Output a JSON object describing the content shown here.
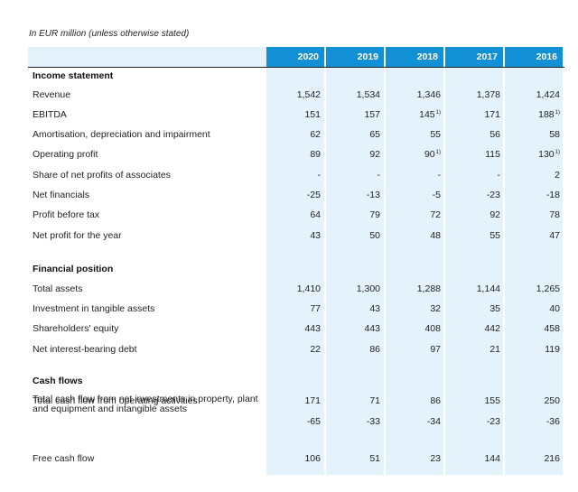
{
  "caption": "In EUR million (unless otherwise stated)",
  "years": [
    "2020",
    "2019",
    "2018",
    "2017",
    "2016"
  ],
  "sections": [
    {
      "title": "Income statement",
      "rows": [
        {
          "label": "Revenue",
          "values": [
            "1,542",
            "1,534",
            "1,346",
            "1,378",
            "1,424"
          ],
          "notes": [
            "",
            "",
            "",
            "",
            ""
          ]
        },
        {
          "label": "EBITDA",
          "values": [
            "151",
            "157",
            "145",
            "171",
            "188"
          ],
          "notes": [
            "",
            "",
            "1)",
            "",
            "1)"
          ]
        },
        {
          "label": "Amortisation, depreciation and impairment",
          "values": [
            "62",
            "65",
            "55",
            "56",
            "58"
          ],
          "notes": [
            "",
            "",
            "",
            "",
            ""
          ]
        },
        {
          "label": "Operating profit",
          "values": [
            "89",
            "92",
            "90",
            "115",
            "130"
          ],
          "notes": [
            "",
            "",
            "1)",
            "",
            "1)"
          ]
        },
        {
          "label": "Share of net profits of associates",
          "values": [
            "-",
            "-",
            "-",
            "-",
            "2"
          ],
          "notes": [
            "",
            "",
            "",
            "",
            ""
          ]
        },
        {
          "label": "Net financials",
          "values": [
            "-25",
            "-13",
            "-5",
            "-23",
            "-18"
          ],
          "notes": [
            "",
            "",
            "",
            "",
            ""
          ]
        },
        {
          "label": "Profit before tax",
          "values": [
            "64",
            "79",
            "72",
            "92",
            "78"
          ],
          "notes": [
            "",
            "",
            "",
            "",
            ""
          ]
        },
        {
          "label": "Net profit for the year",
          "values": [
            "43",
            "50",
            "48",
            "55",
            "47"
          ],
          "notes": [
            "",
            "",
            "",
            "",
            ""
          ]
        }
      ]
    },
    {
      "title": "Financial position",
      "rows": [
        {
          "label": "Total assets",
          "values": [
            "1,410",
            "1,300",
            "1,288",
            "1,144",
            "1,265"
          ],
          "notes": [
            "",
            "",
            "",
            "",
            ""
          ]
        },
        {
          "label": "Investment in tangible assets",
          "values": [
            "77",
            "43",
            "32",
            "35",
            "40"
          ],
          "notes": [
            "",
            "",
            "",
            "",
            ""
          ]
        },
        {
          "label": "Shareholders' equity",
          "values": [
            "443",
            "443",
            "408",
            "442",
            "458"
          ],
          "notes": [
            "",
            "",
            "",
            "",
            ""
          ]
        },
        {
          "label": "Net interest-bearing debt",
          "values": [
            "22",
            "86",
            "97",
            "21",
            "119"
          ],
          "notes": [
            "",
            "",
            "",
            "",
            ""
          ]
        }
      ]
    },
    {
      "title": "Cash flows",
      "rows": [
        {
          "label": "Total cash flow from operating activities",
          "values": [
            "171",
            "71",
            "86",
            "155",
            "250"
          ],
          "notes": [
            "",
            "",
            "",
            "",
            ""
          ]
        },
        {
          "label": "Total cash flow from net investments in property, plant and equipment and intangible assets",
          "values": [
            "-65",
            "-33",
            "-34",
            "-23",
            "-36"
          ],
          "notes": [
            "",
            "",
            "",
            "",
            ""
          ]
        },
        {
          "label": "Free cash flow",
          "values": [
            "106",
            "51",
            "23",
            "144",
            "216"
          ],
          "notes": [
            "",
            "",
            "",
            "",
            ""
          ]
        }
      ]
    }
  ]
}
